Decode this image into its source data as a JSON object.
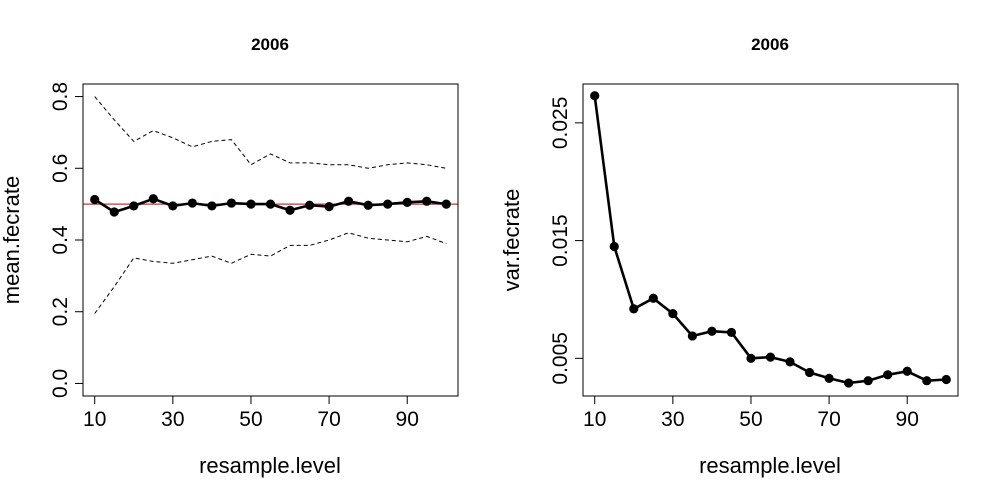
{
  "chart_data": [
    {
      "type": "line",
      "title": "2006",
      "xlabel": "resample.level",
      "ylabel": "mean.fecrate",
      "xlim": [
        7,
        103
      ],
      "ylim": [
        -0.035,
        0.835
      ],
      "x_ticks": [
        10,
        30,
        50,
        70,
        90
      ],
      "x_tick_labels": [
        "10",
        "30",
        "50",
        "70",
        "90"
      ],
      "y_ticks": [
        0.0,
        0.2,
        0.4,
        0.6,
        0.8
      ],
      "y_tick_labels": [
        "0.0",
        "0.2",
        "0.4",
        "0.6",
        "0.8"
      ],
      "reference_line": {
        "y": 0.5,
        "color": "#cc3333"
      },
      "x": [
        10,
        15,
        20,
        25,
        30,
        35,
        40,
        45,
        50,
        55,
        60,
        65,
        70,
        75,
        80,
        85,
        90,
        95,
        100
      ],
      "series": [
        {
          "role": "mean",
          "style": "solid-points",
          "color": "#000000",
          "values": [
            0.513,
            0.478,
            0.495,
            0.515,
            0.495,
            0.503,
            0.495,
            0.503,
            0.5,
            0.5,
            0.483,
            0.497,
            0.493,
            0.508,
            0.497,
            0.5,
            0.505,
            0.508,
            0.5
          ]
        },
        {
          "role": "upper",
          "style": "dashed",
          "color": "#000000",
          "values": [
            0.8,
            0.735,
            0.675,
            0.705,
            0.685,
            0.66,
            0.675,
            0.68,
            0.61,
            0.64,
            0.615,
            0.615,
            0.61,
            0.61,
            0.6,
            0.61,
            0.615,
            0.61,
            0.6
          ]
        },
        {
          "role": "lower",
          "style": "dashed",
          "color": "#000000",
          "values": [
            0.195,
            0.27,
            0.35,
            0.34,
            0.335,
            0.345,
            0.355,
            0.335,
            0.36,
            0.355,
            0.385,
            0.385,
            0.4,
            0.42,
            0.405,
            0.4,
            0.395,
            0.41,
            0.39
          ]
        }
      ]
    },
    {
      "type": "line",
      "title": "2006",
      "xlabel": "resample.level",
      "ylabel": "var.fecrate",
      "xlim": [
        7,
        103
      ],
      "ylim": [
        0.0018,
        0.0283
      ],
      "x_ticks": [
        10,
        30,
        50,
        70,
        90
      ],
      "x_tick_labels": [
        "10",
        "30",
        "50",
        "70",
        "90"
      ],
      "y_ticks": [
        0.005,
        0.015,
        0.025
      ],
      "y_tick_labels": [
        "0.005",
        "0.015",
        "0.025"
      ],
      "x": [
        10,
        15,
        20,
        25,
        30,
        35,
        40,
        45,
        50,
        55,
        60,
        65,
        70,
        75,
        80,
        85,
        90,
        95,
        100
      ],
      "series": [
        {
          "role": "variance",
          "style": "solid-points",
          "color": "#000000",
          "values": [
            0.0273,
            0.0145,
            0.0092,
            0.0101,
            0.0088,
            0.0069,
            0.0073,
            0.0072,
            0.005,
            0.0051,
            0.0047,
            0.0038,
            0.0033,
            0.0029,
            0.0031,
            0.0036,
            0.0039,
            0.0031,
            0.0032
          ]
        }
      ]
    }
  ]
}
